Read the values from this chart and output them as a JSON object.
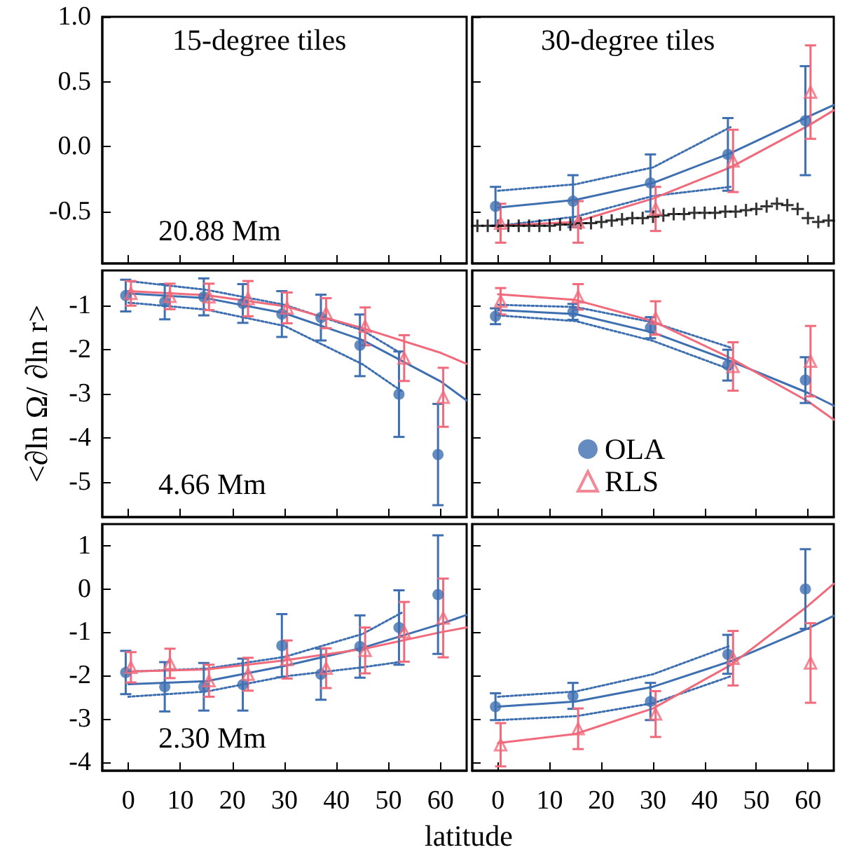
{
  "chart_data": [
    {
      "type": "scatter",
      "title": "15-degree tiles",
      "annotations": [
        "20.88 Mm"
      ],
      "xlim": [
        -5,
        65
      ],
      "xticks": [
        0,
        10,
        20,
        30,
        40,
        50,
        60
      ],
      "ylim": [
        -0.9,
        1.0
      ],
      "yticks": [
        -0.5,
        {
          "value": 0,
          "label": "0.0"
        },
        0.5,
        {
          "value": 1,
          "label": "1.0"
        }
      ],
      "tick_labels": "y"
    },
    {
      "type": "scatter",
      "title": "30-degree tiles",
      "xlim": [
        -5,
        65
      ],
      "xticks": [
        0,
        10,
        20,
        30,
        40,
        50,
        60
      ],
      "ylim": [
        -0.9,
        1.0
      ],
      "yticks": [
        -0.5,
        0,
        0.5,
        1
      ],
      "tick_labels": false,
      "series": [
        {
          "type": "line",
          "color": "#3e6fb0",
          "line_style": "dotted",
          "marker": "none",
          "x": [
            0,
            15,
            30,
            45
          ],
          "values": [
            -0.34,
            -0.29,
            -0.16,
            0.15
          ]
        },
        {
          "type": "line",
          "color": "#3e6fb0",
          "line_style": "dotted",
          "marker": "none",
          "x": [
            0,
            15,
            30,
            45
          ],
          "values": [
            -0.61,
            -0.54,
            -0.38,
            -0.31
          ]
        },
        {
          "type": "line",
          "color": "#3e6fb0",
          "line_style": "solid",
          "marker": "none",
          "x": [
            0,
            15,
            30,
            45,
            60,
            65
          ],
          "values": [
            -0.47,
            -0.41,
            -0.28,
            -0.05,
            0.23,
            0.32
          ]
        },
        {
          "type": "line",
          "color": "#f06a7c",
          "line_style": "solid",
          "marker": "none",
          "x": [
            0,
            15,
            30,
            45,
            60,
            65
          ],
          "values": [
            -0.61,
            -0.58,
            -0.4,
            -0.16,
            0.16,
            0.28
          ]
        },
        {
          "type": "scatter",
          "color": "#000000",
          "marker": "cross",
          "x": [
            -4,
            -2,
            0,
            2,
            4,
            6,
            8,
            10,
            12,
            14,
            16,
            18,
            20,
            22,
            24,
            26,
            28,
            30,
            32,
            34,
            36,
            38,
            40,
            42,
            44,
            46,
            48,
            50,
            52,
            54,
            56,
            58,
            60,
            62,
            64
          ],
          "values": [
            -0.61,
            -0.61,
            -0.61,
            -0.61,
            -0.61,
            -0.61,
            -0.61,
            -0.61,
            -0.6,
            -0.6,
            -0.59,
            -0.59,
            -0.58,
            -0.57,
            -0.56,
            -0.55,
            -0.55,
            -0.54,
            -0.53,
            -0.52,
            -0.52,
            -0.51,
            -0.51,
            -0.51,
            -0.5,
            -0.5,
            -0.49,
            -0.48,
            -0.46,
            -0.44,
            -0.45,
            -0.48,
            -0.55,
            -0.58,
            -0.57
          ]
        },
        {
          "type": "scatter",
          "color": "#3e6fb0",
          "marker": "circle",
          "x": [
            -0.5,
            14.5,
            29.5,
            44.5,
            59.5
          ],
          "values": [
            -0.46,
            -0.42,
            -0.28,
            -0.06,
            0.2
          ],
          "errors": [
            0.15,
            0.2,
            0.22,
            0.28,
            0.42
          ]
        },
        {
          "type": "scatter",
          "color": "#f06a7c",
          "marker": "triangle",
          "x": [
            0.5,
            15.5,
            30.5,
            45.5,
            60.5
          ],
          "values": [
            -0.59,
            -0.58,
            -0.48,
            -0.11,
            0.42
          ],
          "errors": [
            0.15,
            0.16,
            0.17,
            0.24,
            0.36
          ]
        }
      ]
    },
    {
      "type": "scatter",
      "ylabel": "<∂ln Ω/ ∂ln r>",
      "annotations": [
        "4.66 Mm"
      ],
      "xlim": [
        -5,
        65
      ],
      "xticks": [
        0,
        10,
        20,
        30,
        40,
        50,
        60
      ],
      "ylim": [
        -5.8,
        -0.2
      ],
      "yticks": [
        -5,
        -4,
        -3,
        -2,
        -1
      ],
      "tick_labels": "y",
      "series": [
        {
          "type": "line",
          "color": "#3e6fb0",
          "line_style": "dotted",
          "marker": "none",
          "x": [
            0,
            15,
            30,
            45,
            52.5
          ],
          "values": [
            -0.44,
            -0.64,
            -0.98,
            -1.56,
            -2.09
          ]
        },
        {
          "type": "line",
          "color": "#3e6fb0",
          "line_style": "dotted",
          "marker": "none",
          "x": [
            0,
            15,
            30,
            45,
            52.5
          ],
          "values": [
            -0.93,
            -1.09,
            -1.46,
            -2.33,
            -2.94
          ]
        },
        {
          "type": "line",
          "color": "#3e6fb0",
          "line_style": "solid",
          "marker": "none",
          "x": [
            0,
            15,
            30,
            45,
            60,
            65
          ],
          "values": [
            -0.72,
            -0.83,
            -1.17,
            -1.78,
            -2.72,
            -3.15
          ]
        },
        {
          "type": "line",
          "color": "#f06a7c",
          "line_style": "solid",
          "marker": "none",
          "x": [
            0,
            15,
            30,
            45,
            60,
            65
          ],
          "values": [
            -0.67,
            -0.76,
            -1.01,
            -1.51,
            -2.07,
            -2.32
          ]
        },
        {
          "type": "scatter",
          "color": "#3e6fb0",
          "marker": "circle",
          "x": [
            -0.5,
            7,
            14.5,
            22,
            29.5,
            37,
            44.5,
            52,
            59.5
          ],
          "values": [
            -0.77,
            -0.91,
            -0.8,
            -0.95,
            -1.19,
            -1.27,
            -1.9,
            -3.01,
            -4.38
          ],
          "errors": [
            0.36,
            0.4,
            0.42,
            0.44,
            0.52,
            0.52,
            0.7,
            0.97,
            1.15
          ]
        },
        {
          "type": "scatter",
          "color": "#f06a7c",
          "marker": "triangle",
          "x": [
            0.5,
            8,
            15.5,
            23,
            30.5,
            38,
            45.5,
            53,
            60.5
          ],
          "values": [
            -0.72,
            -0.79,
            -0.8,
            -0.84,
            -1.05,
            -1.17,
            -1.47,
            -2.19,
            -3.08
          ],
          "errors": [
            0.28,
            0.29,
            0.3,
            0.4,
            0.35,
            0.34,
            0.43,
            0.52,
            0.67
          ]
        }
      ]
    },
    {
      "type": "scatter",
      "legend": "bottom left",
      "xlim": [
        -5,
        65
      ],
      "xticks": [
        0,
        10,
        20,
        30,
        40,
        50,
        60
      ],
      "ylim": [
        -5.8,
        -0.2
      ],
      "yticks": [
        -5,
        -4,
        -3,
        -2,
        -1
      ],
      "tick_labels": false,
      "series": [
        {
          "type": "line",
          "color": "#3e6fb0",
          "line_style": "dotted",
          "marker": "none",
          "x": [
            0,
            15,
            30,
            45
          ],
          "values": [
            -0.98,
            -1.03,
            -1.38,
            -1.95
          ]
        },
        {
          "type": "line",
          "color": "#3e6fb0",
          "line_style": "dotted",
          "marker": "none",
          "x": [
            0,
            15,
            30,
            45
          ],
          "values": [
            -1.22,
            -1.35,
            -1.8,
            -2.45
          ]
        },
        {
          "type": "line",
          "color": "#3e6fb0",
          "line_style": "solid",
          "marker": "none",
          "x": [
            0,
            15,
            30,
            45,
            60,
            65
          ],
          "values": [
            -1.1,
            -1.19,
            -1.61,
            -2.26,
            -2.98,
            -3.27
          ]
        },
        {
          "type": "line",
          "color": "#f06a7c",
          "line_style": "solid",
          "marker": "none",
          "x": [
            0,
            15,
            30,
            45,
            60,
            65
          ],
          "values": [
            -0.74,
            -0.87,
            -1.35,
            -2.19,
            -3.17,
            -3.59
          ]
        },
        {
          "type": "scatter",
          "name": "OLA",
          "color": "#3e6fb0",
          "marker": "circle",
          "x": [
            -0.5,
            14.5,
            29.5,
            44.5,
            59.5
          ],
          "values": [
            -1.24,
            -1.14,
            -1.5,
            -2.35,
            -2.69
          ],
          "errors": [
            0.18,
            0.18,
            0.24,
            0.35,
            0.52
          ]
        },
        {
          "type": "scatter",
          "name": "RLS",
          "color": "#f06a7c",
          "marker": "triangle",
          "x": [
            0.5,
            15.5,
            30.5,
            45.5,
            60.5
          ],
          "values": [
            -0.9,
            -0.8,
            -1.28,
            -2.38,
            -2.26
          ],
          "errors": [
            0.3,
            0.29,
            0.38,
            0.55,
            0.8
          ]
        }
      ]
    },
    {
      "type": "scatter",
      "xlabel": "latitude",
      "annotations": [
        "2.30 Mm"
      ],
      "xlim": [
        -5,
        65
      ],
      "xticks": [
        0,
        10,
        20,
        30,
        40,
        50,
        60
      ],
      "ylim": [
        -4.2,
        1.5
      ],
      "yticks": [
        -4,
        -3,
        -2,
        -1,
        0,
        1
      ],
      "series": [
        {
          "type": "line",
          "color": "#3e6fb0",
          "line_style": "dotted",
          "marker": "none",
          "x": [
            0,
            15,
            30,
            45,
            52.5
          ],
          "values": [
            -1.91,
            -1.84,
            -1.57,
            -1.04,
            -0.55
          ]
        },
        {
          "type": "line",
          "color": "#3e6fb0",
          "line_style": "dotted",
          "marker": "none",
          "x": [
            0,
            15,
            30,
            45,
            52.5
          ],
          "values": [
            -2.49,
            -2.37,
            -2.02,
            -1.81,
            -1.68
          ]
        },
        {
          "type": "line",
          "color": "#3e6fb0",
          "line_style": "solid",
          "marker": "none",
          "x": [
            0,
            15,
            30,
            45,
            60,
            65
          ],
          "values": [
            -2.2,
            -2.13,
            -1.78,
            -1.36,
            -0.81,
            -0.6
          ]
        },
        {
          "type": "line",
          "color": "#f06a7c",
          "line_style": "solid",
          "marker": "none",
          "x": [
            0,
            15,
            30,
            45,
            60,
            65
          ],
          "values": [
            -1.91,
            -1.86,
            -1.65,
            -1.39,
            -1.0,
            -0.89
          ]
        },
        {
          "type": "scatter",
          "color": "#3e6fb0",
          "marker": "circle",
          "x": [
            -0.5,
            7,
            14.5,
            22,
            29.5,
            37,
            44.5,
            52,
            59.5
          ],
          "values": [
            -1.93,
            -2.26,
            -2.26,
            -2.21,
            -1.31,
            -1.97,
            -1.33,
            -0.89,
            -0.13
          ],
          "errors": [
            0.5,
            0.57,
            0.55,
            0.6,
            0.73,
            0.59,
            0.72,
            0.86,
            1.37
          ]
        },
        {
          "type": "scatter",
          "color": "#f06a7c",
          "marker": "triangle",
          "x": [
            0.5,
            8,
            15.5,
            23,
            30.5,
            38,
            45.5,
            53,
            60.5
          ],
          "values": [
            -1.81,
            -1.72,
            -2.12,
            -1.97,
            -1.63,
            -1.83,
            -1.42,
            -0.99,
            -0.67
          ],
          "errors": [
            0.35,
            0.34,
            0.37,
            0.38,
            0.44,
            0.46,
            0.53,
            0.69,
            0.91
          ]
        }
      ]
    },
    {
      "type": "scatter",
      "xlim": [
        -5,
        65
      ],
      "xticks": [
        0,
        10,
        20,
        30,
        40,
        50,
        60
      ],
      "ylim": [
        -4.2,
        1.5
      ],
      "yticks": [
        -4,
        -3,
        -2,
        -1,
        0,
        1
      ],
      "tick_labels": "x",
      "series": [
        {
          "type": "line",
          "color": "#3e6fb0",
          "line_style": "dotted",
          "marker": "none",
          "x": [
            0,
            15,
            30,
            45
          ],
          "values": [
            -2.49,
            -2.37,
            -1.97,
            -1.31
          ]
        },
        {
          "type": "line",
          "color": "#3e6fb0",
          "line_style": "dotted",
          "marker": "none",
          "x": [
            0,
            15,
            30,
            45
          ],
          "values": [
            -3.03,
            -2.94,
            -2.64,
            -2.02
          ]
        },
        {
          "type": "line",
          "color": "#3e6fb0",
          "line_style": "solid",
          "marker": "none",
          "x": [
            0,
            15,
            30,
            45,
            60,
            65
          ],
          "values": [
            -2.72,
            -2.6,
            -2.26,
            -1.67,
            -0.91,
            -0.62
          ]
        },
        {
          "type": "line",
          "color": "#f06a7c",
          "line_style": "solid",
          "marker": "none",
          "x": [
            0,
            15,
            30,
            45,
            60,
            65
          ],
          "values": [
            -3.56,
            -3.35,
            -2.76,
            -1.76,
            -0.39,
            0.12
          ]
        },
        {
          "type": "scatter",
          "color": "#3e6fb0",
          "marker": "circle",
          "x": [
            -0.5,
            14.5,
            29.5,
            44.5,
            59.5
          ],
          "values": [
            -2.72,
            -2.47,
            -2.6,
            -1.51,
            0.0
          ],
          "errors": [
            0.31,
            0.3,
            0.43,
            0.45,
            0.92
          ]
        },
        {
          "type": "scatter",
          "color": "#f06a7c",
          "marker": "triangle",
          "x": [
            0.5,
            15.5,
            30.5,
            45.5,
            60.5
          ],
          "values": [
            -3.6,
            -3.23,
            -2.89,
            -1.6,
            -1.71
          ],
          "errors": [
            0.5,
            0.47,
            0.53,
            0.63,
            0.92
          ]
        }
      ]
    }
  ]
}
